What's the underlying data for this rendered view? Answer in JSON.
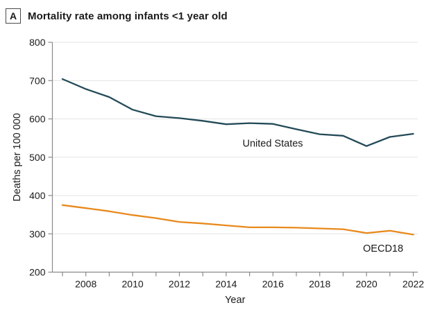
{
  "panel": {
    "letter": "A",
    "title": "Mortality rate among infants <1 year old"
  },
  "chart_data": {
    "type": "line",
    "title": "Mortality rate among infants <1 year old",
    "xlabel": "Year",
    "ylabel": "Deaths per 100 000",
    "x": [
      2007,
      2008,
      2009,
      2010,
      2011,
      2012,
      2013,
      2014,
      2015,
      2016,
      2017,
      2018,
      2019,
      2020,
      2021,
      2022
    ],
    "series": [
      {
        "name": "United States",
        "color": "#234a57",
        "values": [
          704,
          678,
          657,
          624,
          607,
          602,
          595,
          586,
          589,
          587,
          573,
          560,
          556,
          529,
          553,
          561
        ]
      },
      {
        "name": "OECD18",
        "color": "#e8891c",
        "values": [
          375,
          367,
          359,
          349,
          341,
          331,
          327,
          322,
          317,
          317,
          316,
          314,
          312,
          302,
          308,
          298
        ]
      }
    ],
    "ylim": [
      200,
      800
    ],
    "yticks": [
      200,
      300,
      400,
      500,
      600,
      700,
      800
    ],
    "xticks_minor_every_year": true,
    "xtick_labels": [
      "2008",
      "2010",
      "2012",
      "2014",
      "2016",
      "2018",
      "2020",
      "2022"
    ],
    "grid": "horizontal",
    "legend_position": "inline-labels",
    "annotations": [
      {
        "text": "United States",
        "x": 2014.7,
        "y": 528,
        "series": "United States"
      },
      {
        "text": "OECD18",
        "x": 2019.85,
        "y": 253,
        "series": "OECD18"
      }
    ]
  },
  "colors": {
    "us_line": "#234a57",
    "oecd_line": "#e8891c",
    "grid": "#e3e3e3",
    "axis": "#8a8a8a",
    "text": "#1a1a1a"
  }
}
